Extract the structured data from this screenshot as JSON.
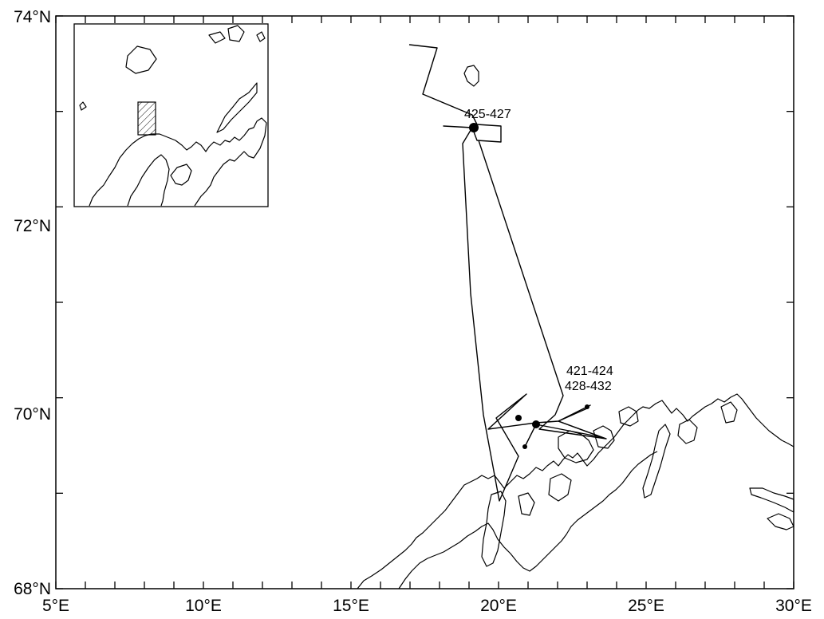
{
  "map": {
    "x_axis": {
      "ticks": [
        {
          "value": 5,
          "label": "5°E"
        },
        {
          "value": 10,
          "label": "10°E"
        },
        {
          "value": 15,
          "label": "15°E"
        },
        {
          "value": 20,
          "label": "20°E"
        },
        {
          "value": 25,
          "label": "25°E"
        },
        {
          "value": 30,
          "label": "30°E"
        }
      ]
    },
    "y_axis": {
      "ticks": [
        {
          "value": 68,
          "label": "68°N"
        },
        {
          "value": 70,
          "label": "70°N"
        },
        {
          "value": 72,
          "label": "72°N"
        },
        {
          "value": 74,
          "label": "74°N"
        }
      ]
    },
    "extent": {
      "lon": [
        5,
        30
      ],
      "lat": [
        68,
        74
      ]
    },
    "annotations": [
      {
        "text": "425-427",
        "lon": 19.0,
        "lat": 73.0
      },
      {
        "text": "421-424",
        "lon": 22.7,
        "lat": 70.4
      },
      {
        "text": "428-432",
        "lon": 22.6,
        "lat": 70.25
      }
    ],
    "inset": {
      "description_visible": false
    },
    "colors": {
      "line": "#000000",
      "background": "#ffffff"
    }
  }
}
